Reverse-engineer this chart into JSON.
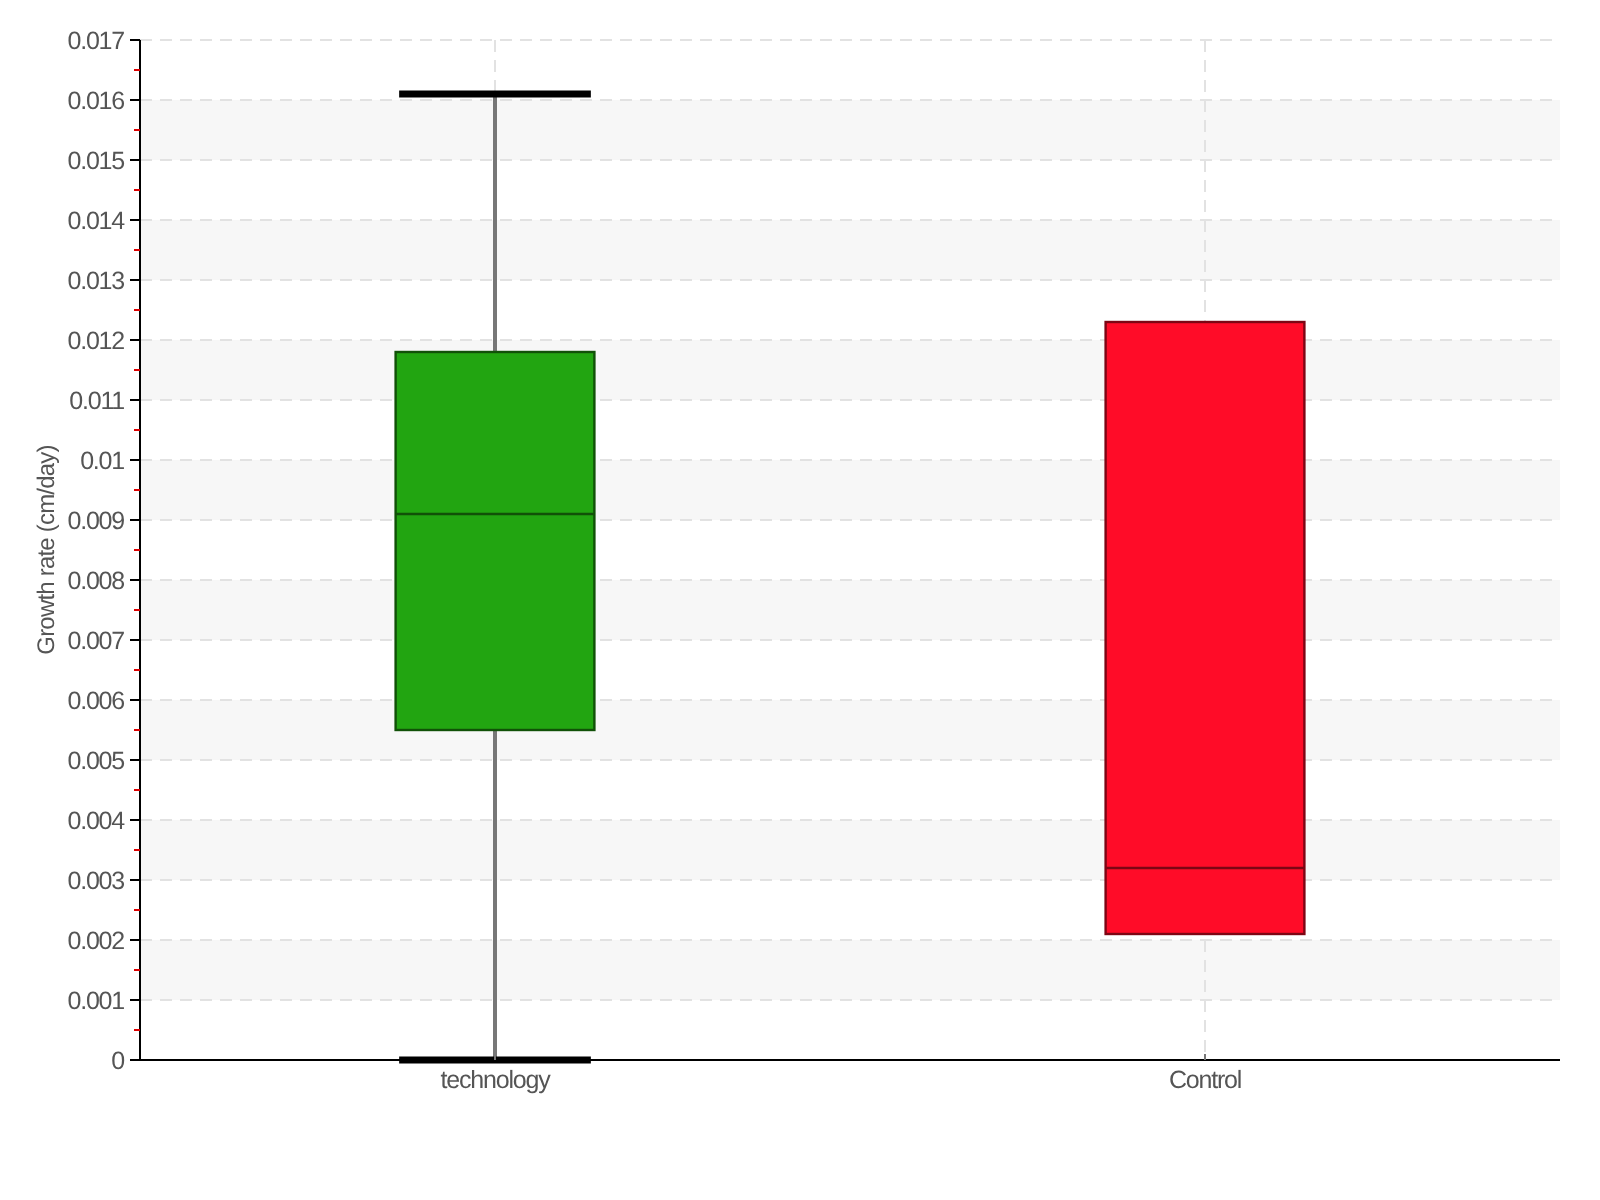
{
  "chart_data": {
    "type": "box",
    "ylabel": "Growth rate (cm/day)",
    "categories": [
      "technology",
      "Control"
    ],
    "boxes": [
      {
        "low": 0,
        "q1": 0.0055,
        "median": 0.0091,
        "q3": 0.0118,
        "high": 0.0161
      },
      {
        "low": 0.0021,
        "q1": 0.0021,
        "median": 0.0032,
        "q3": 0.0123,
        "high": 0.0123
      }
    ],
    "colors": [
      "#22a511",
      "#ff0c28"
    ],
    "ylim": [
      0,
      0.017
    ],
    "yticks": [
      0,
      {
        "value": 0.0005,
        "label": null
      },
      0.001,
      {
        "value": 0.0015,
        "label": null
      },
      0.002,
      {
        "value": 0.0025,
        "label": null
      },
      0.003,
      {
        "value": 0.0035,
        "label": null
      },
      0.004,
      {
        "value": 0.0045,
        "label": null
      },
      0.005,
      {
        "value": 0.0055,
        "label": null
      },
      0.006,
      {
        "value": 0.0065,
        "label": null
      },
      0.007,
      {
        "value": 0.0075,
        "label": null
      },
      0.008,
      {
        "value": 0.0085,
        "label": null
      },
      0.009,
      {
        "value": 0.0095,
        "label": null
      },
      0.01,
      {
        "value": 0.0105,
        "label": null
      },
      0.011,
      {
        "value": 0.0115,
        "label": null
      },
      0.012,
      {
        "value": 0.0125,
        "label": null
      },
      0.013,
      {
        "value": 0.0135,
        "label": null
      },
      0.014,
      {
        "value": 0.0145,
        "label": null
      },
      0.015,
      {
        "value": 0.0155,
        "label": null
      },
      0.016,
      {
        "value": 0.0165,
        "label": null
      },
      0.017
    ],
    "grid": true
  }
}
